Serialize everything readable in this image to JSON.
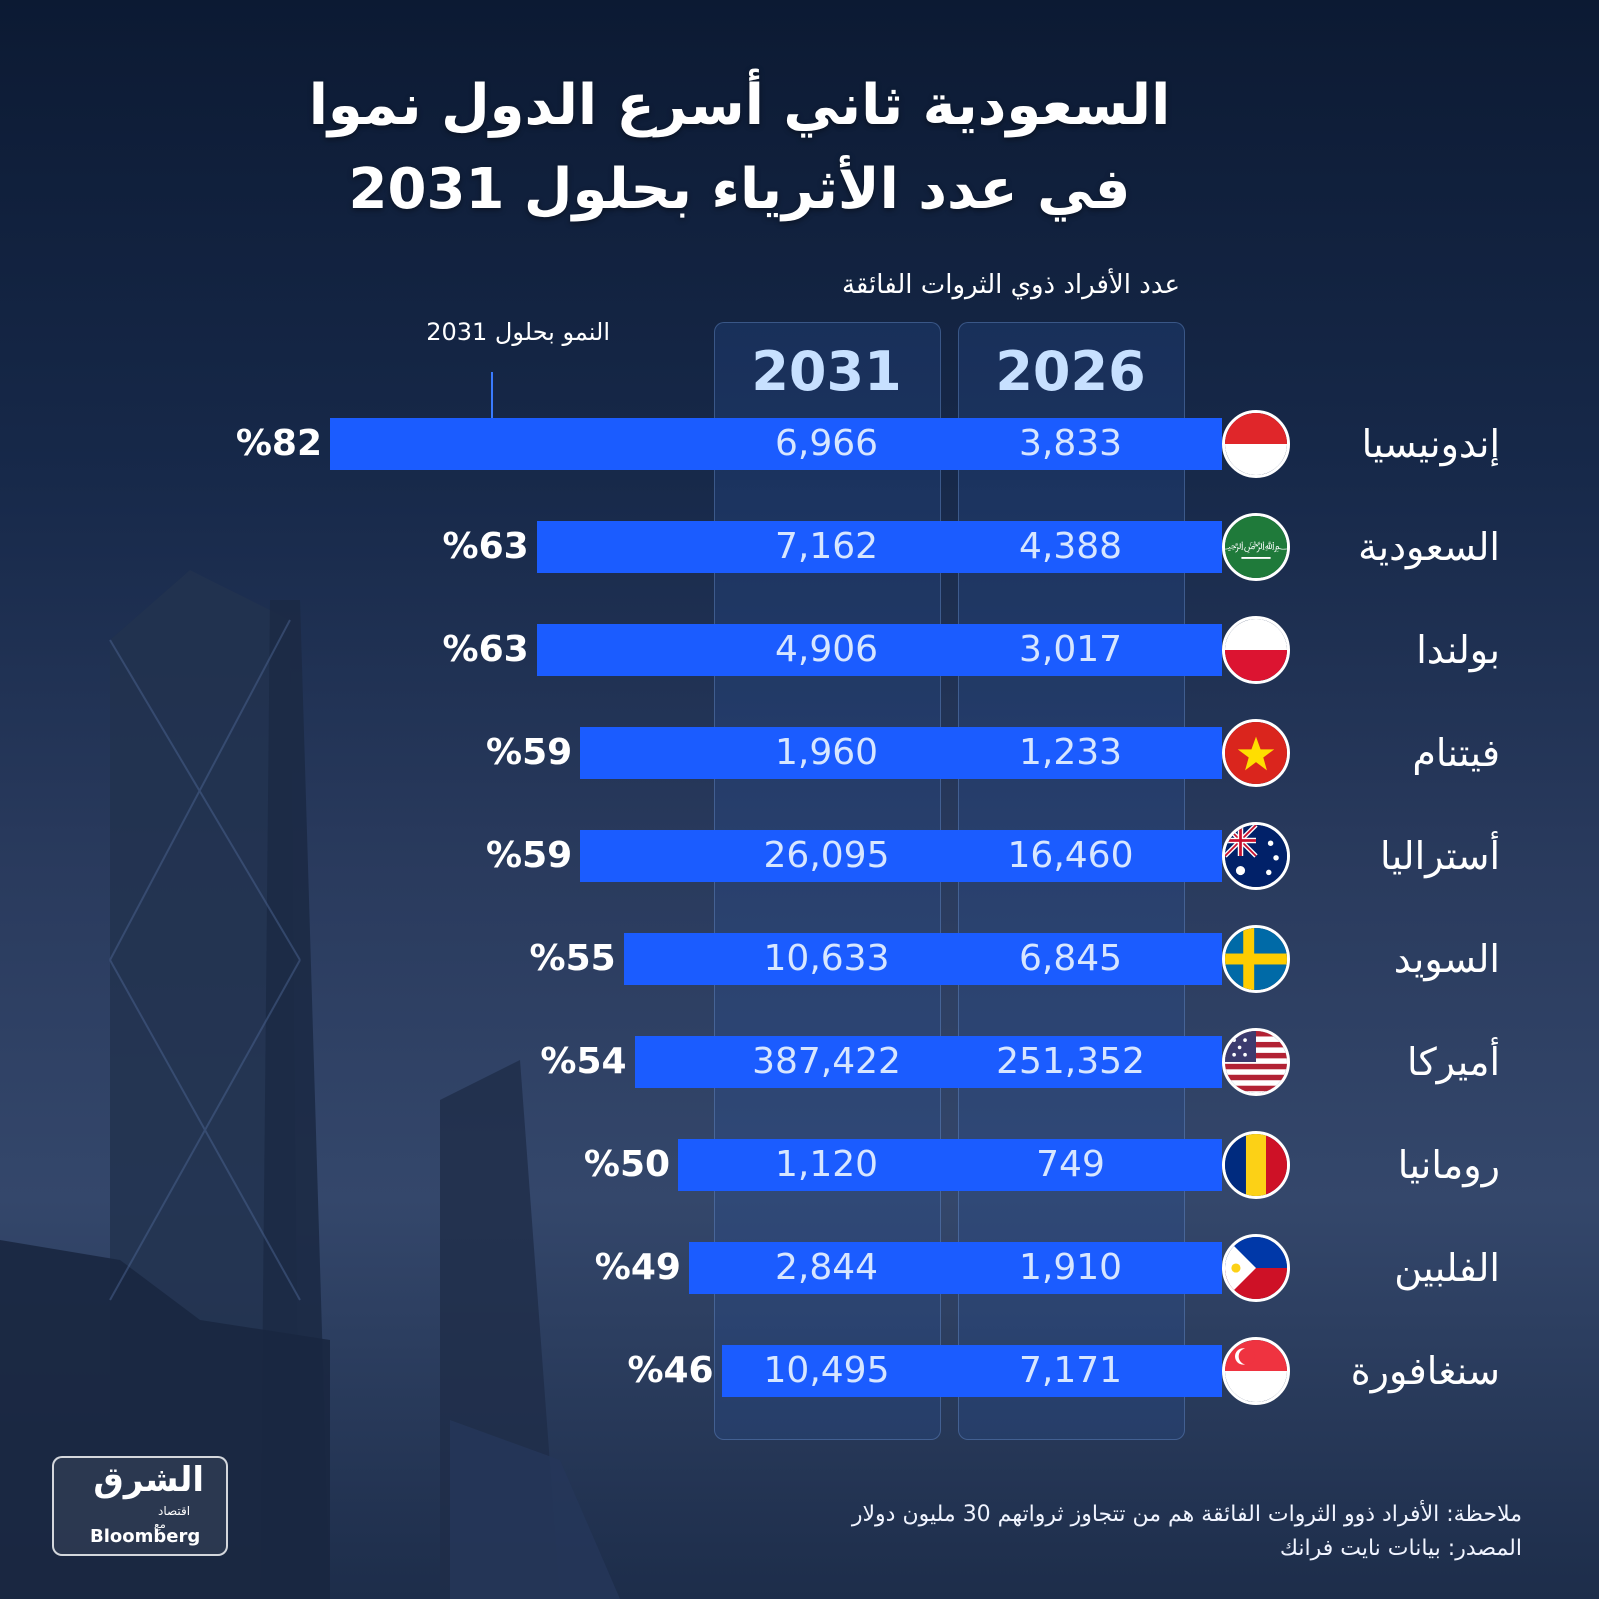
{
  "title_lines": [
    "السعودية ثاني أسرع الدول نموا",
    "في عدد الأثرياء بحلول 2031"
  ],
  "subtitle": "عدد الأفراد ذوي الثروات الفائقة",
  "growth_header": "النمو بحلول 2031",
  "years": [
    "2031",
    "2026"
  ],
  "chart_data": {
    "type": "bar",
    "title": "السعودية ثاني أسرع الدول نموا في عدد الأثرياء بحلول 2031",
    "categories": [
      "إندونيسيا",
      "السعودية",
      "بولندا",
      "فيتنام",
      "أستراليا",
      "السويد",
      "أميركا",
      "رومانيا",
      "الفلبين",
      "سنغافورة"
    ],
    "series": [
      {
        "name": "النمو بحلول 2031",
        "values": [
          82,
          63,
          63,
          59,
          59,
          55,
          54,
          50,
          49,
          46
        ],
        "labels": [
          "%82",
          "%63",
          "%63",
          "%59",
          "%59",
          "%55",
          "%54",
          "%50",
          "%49",
          "%46"
        ]
      },
      {
        "name": "2031",
        "values": [
          6966,
          7162,
          4906,
          1960,
          26095,
          10633,
          387422,
          1120,
          2844,
          10495
        ],
        "labels": [
          "6,966",
          "7,162",
          "4,906",
          "1,960",
          "26,095",
          "10,633",
          "387,422",
          "1,120",
          "2,844",
          "10,495"
        ]
      },
      {
        "name": "2026",
        "values": [
          3833,
          4388,
          3017,
          1233,
          16460,
          6845,
          251352,
          749,
          1910,
          7171
        ],
        "labels": [
          "3,833",
          "4,388",
          "3,017",
          "1,233",
          "16,460",
          "6,845",
          "251,352",
          "749",
          "1,910",
          "7,171"
        ]
      }
    ]
  },
  "flags": [
    "indonesia-flag-icon",
    "saudi-flag-icon",
    "poland-flag-icon",
    "vietnam-flag-icon",
    "australia-flag-icon",
    "sweden-flag-icon",
    "usa-flag-icon",
    "romania-flag-icon",
    "philippines-flag-icon",
    "singapore-flag-icon"
  ],
  "footer": {
    "note": "ملاحظة: الأفراد ذوو الثروات الفائقة هم من تتجاوز ثرواتهم 30 مليون دولار",
    "source": "المصدر: بيانات نايت فرانك"
  },
  "logo": {
    "name": "الشرق",
    "sub": "اقتصاد",
    "with": "مع",
    "partner": "Bloomberg"
  },
  "colors": {
    "bar": "#1b5cff",
    "year_text": "#c7e0ff",
    "background": "#17294a"
  }
}
